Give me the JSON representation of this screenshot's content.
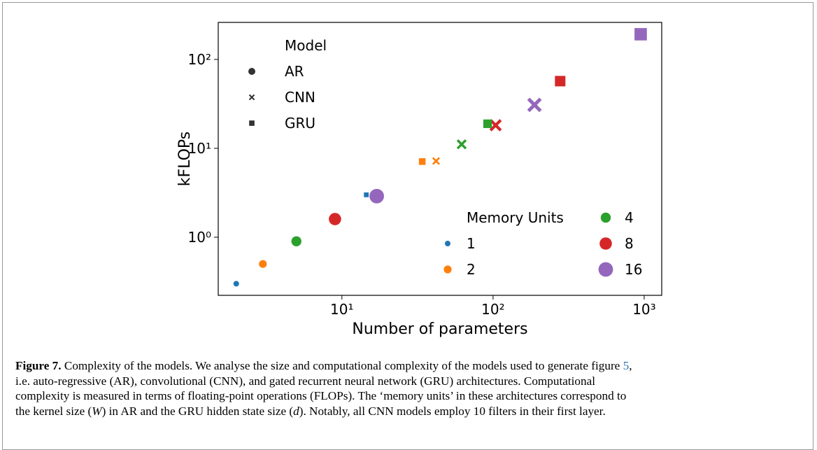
{
  "chart_data": {
    "type": "scatter",
    "xlabel": "Number of parameters",
    "ylabel": "kFLOPs",
    "log_x": true,
    "log_y": true,
    "xlim": [
      1.52,
      1306
    ],
    "ylim": [
      0.222,
      261
    ],
    "xticks": [
      {
        "value": 10,
        "label": "10¹"
      },
      {
        "value": 100,
        "label": "10²"
      },
      {
        "value": 1000,
        "label": "10³"
      }
    ],
    "yticks": [
      {
        "value": 1,
        "label": "10⁰"
      },
      {
        "value": 10,
        "label": "10¹"
      },
      {
        "value": 100,
        "label": "10²"
      }
    ],
    "model_legend_title": "Model",
    "memory_legend_title": "Memory Units",
    "memory_units": [
      {
        "value": 1,
        "color": "#1f77b4"
      },
      {
        "value": 2,
        "color": "#ff7f0e"
      },
      {
        "value": 4,
        "color": "#2ca02c"
      },
      {
        "value": 8,
        "color": "#d62728"
      },
      {
        "value": 16,
        "color": "#9467bd"
      }
    ],
    "series": [
      {
        "name": "AR",
        "marker": "circle",
        "x": [
          2,
          3,
          5,
          9,
          17
        ],
        "values": [
          0.3,
          0.5,
          0.9,
          1.6,
          2.9
        ],
        "memory": [
          1,
          2,
          4,
          8,
          16
        ]
      },
      {
        "name": "CNN",
        "marker": "x",
        "x": [
          42,
          62,
          104,
          188
        ],
        "values": [
          7.2,
          11.1,
          18.2,
          30.8
        ],
        "memory": [
          2,
          4,
          8,
          16
        ]
      },
      {
        "name": "GRU",
        "marker": "square",
        "x": [
          14.5,
          34,
          92,
          278,
          948
        ],
        "values": [
          3.0,
          7.1,
          18.9,
          57,
          192
        ],
        "memory": [
          1,
          2,
          4,
          8,
          16
        ]
      }
    ]
  },
  "caption": {
    "lines": [
      [
        {
          "text": "Figure 7.",
          "style": "bold"
        },
        {
          "text": " Complexity of the models. We analyse the size and computational complexity of the models used to generate figure ",
          "style": "plain"
        },
        {
          "text": "5",
          "style": "ref"
        },
        {
          "text": ",",
          "style": "plain"
        }
      ],
      [
        {
          "text": "i.e. auto-regressive (AR), convolutional (CNN), and gated recurrent neural network (GRU) architectures. Computational",
          "style": "plain"
        }
      ],
      [
        {
          "text": "complexity is measured in terms of floating-point operations (FLOPs). The ‘memory units’ in these architectures correspond to",
          "style": "plain"
        }
      ],
      [
        {
          "text": "the kernel size (",
          "style": "plain"
        },
        {
          "text": "W",
          "style": "italic"
        },
        {
          "text": ") in AR and the GRU hidden state size (",
          "style": "plain"
        },
        {
          "text": "d",
          "style": "italic"
        },
        {
          "text": "). Notably, all CNN models employ 10 filters in their first layer.",
          "style": "plain"
        }
      ]
    ]
  }
}
